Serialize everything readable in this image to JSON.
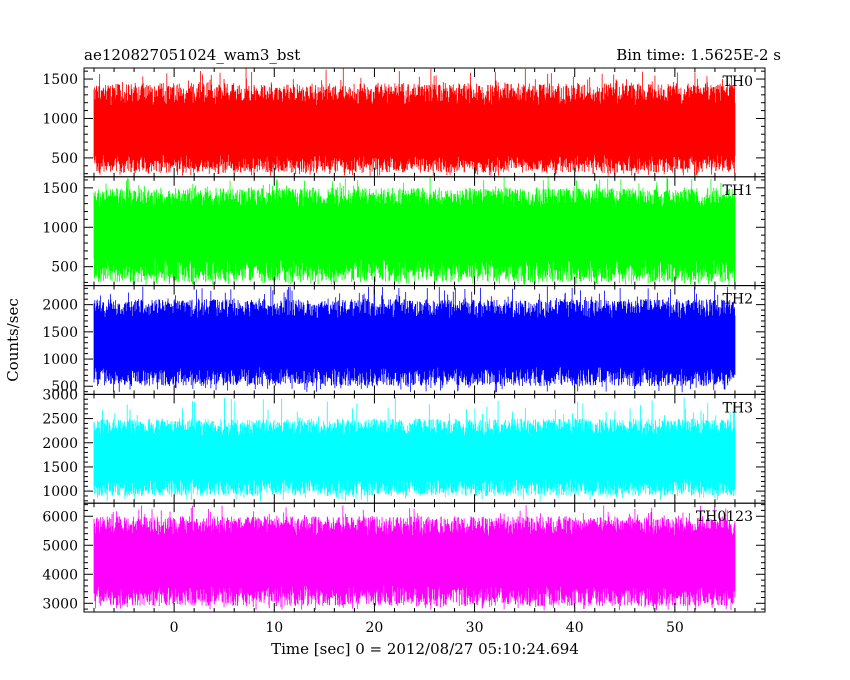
{
  "chart_data": {
    "type": "line",
    "title_left": "ae120827051024_wam3_bst",
    "title_right": "Bin time: 1.5625E-2 s",
    "xlabel": "Time [sec] 0 = 2012/08/27 05:10:24.694",
    "ylabel": "Counts/sec",
    "xlim": [
      -9,
      59
    ],
    "x_data_range": [
      -8,
      56
    ],
    "x_ticks": [
      0,
      10,
      20,
      30,
      40,
      50
    ],
    "x_tick_labels": [
      "0",
      "10",
      "20",
      "30",
      "40",
      "50"
    ],
    "panels": [
      {
        "name": "TH0",
        "color": "#ff0000",
        "ylim": [
          260,
          1640
        ],
        "y_ticks": [
          500,
          1000,
          1500
        ],
        "y_tick_labels": [
          "500",
          "1000",
          "1500"
        ],
        "low": 310,
        "mean": 820,
        "high": 1450,
        "peak_max": 1640
      },
      {
        "name": "TH1",
        "color": "#00ff00",
        "ylim": [
          260,
          1640
        ],
        "y_ticks": [
          500,
          1000,
          1500
        ],
        "y_tick_labels": [
          "500",
          "1000",
          "1500"
        ],
        "low": 300,
        "mean": 950,
        "high": 1500,
        "peak_max": 1640
      },
      {
        "name": "TH2",
        "color": "#0000ff",
        "ylim": [
          350,
          2350
        ],
        "y_ticks": [
          500,
          1000,
          1500,
          2000
        ],
        "y_tick_labels": [
          "500",
          "1000",
          "1500",
          "2000"
        ],
        "low": 500,
        "mean": 1300,
        "high": 2100,
        "peak_max": 2350
      },
      {
        "name": "TH3",
        "color": "#00ffff",
        "ylim": [
          750,
          3000
        ],
        "y_ticks": [
          1000,
          1500,
          2000,
          2500,
          3000
        ],
        "y_tick_labels": [
          "1000",
          "1500",
          "2000",
          "2500",
          "3000"
        ],
        "low": 900,
        "mean": 1700,
        "high": 2500,
        "peak_max": 2950
      },
      {
        "name": "TH0123",
        "color": "#ff00ff",
        "ylim": [
          2700,
          6450
        ],
        "y_ticks": [
          3000,
          4000,
          5000,
          6000
        ],
        "y_tick_labels": [
          "3000",
          "4000",
          "5000",
          "6000"
        ],
        "low": 2900,
        "mean": 4500,
        "high": 6000,
        "peak_max": 6400
      }
    ]
  }
}
